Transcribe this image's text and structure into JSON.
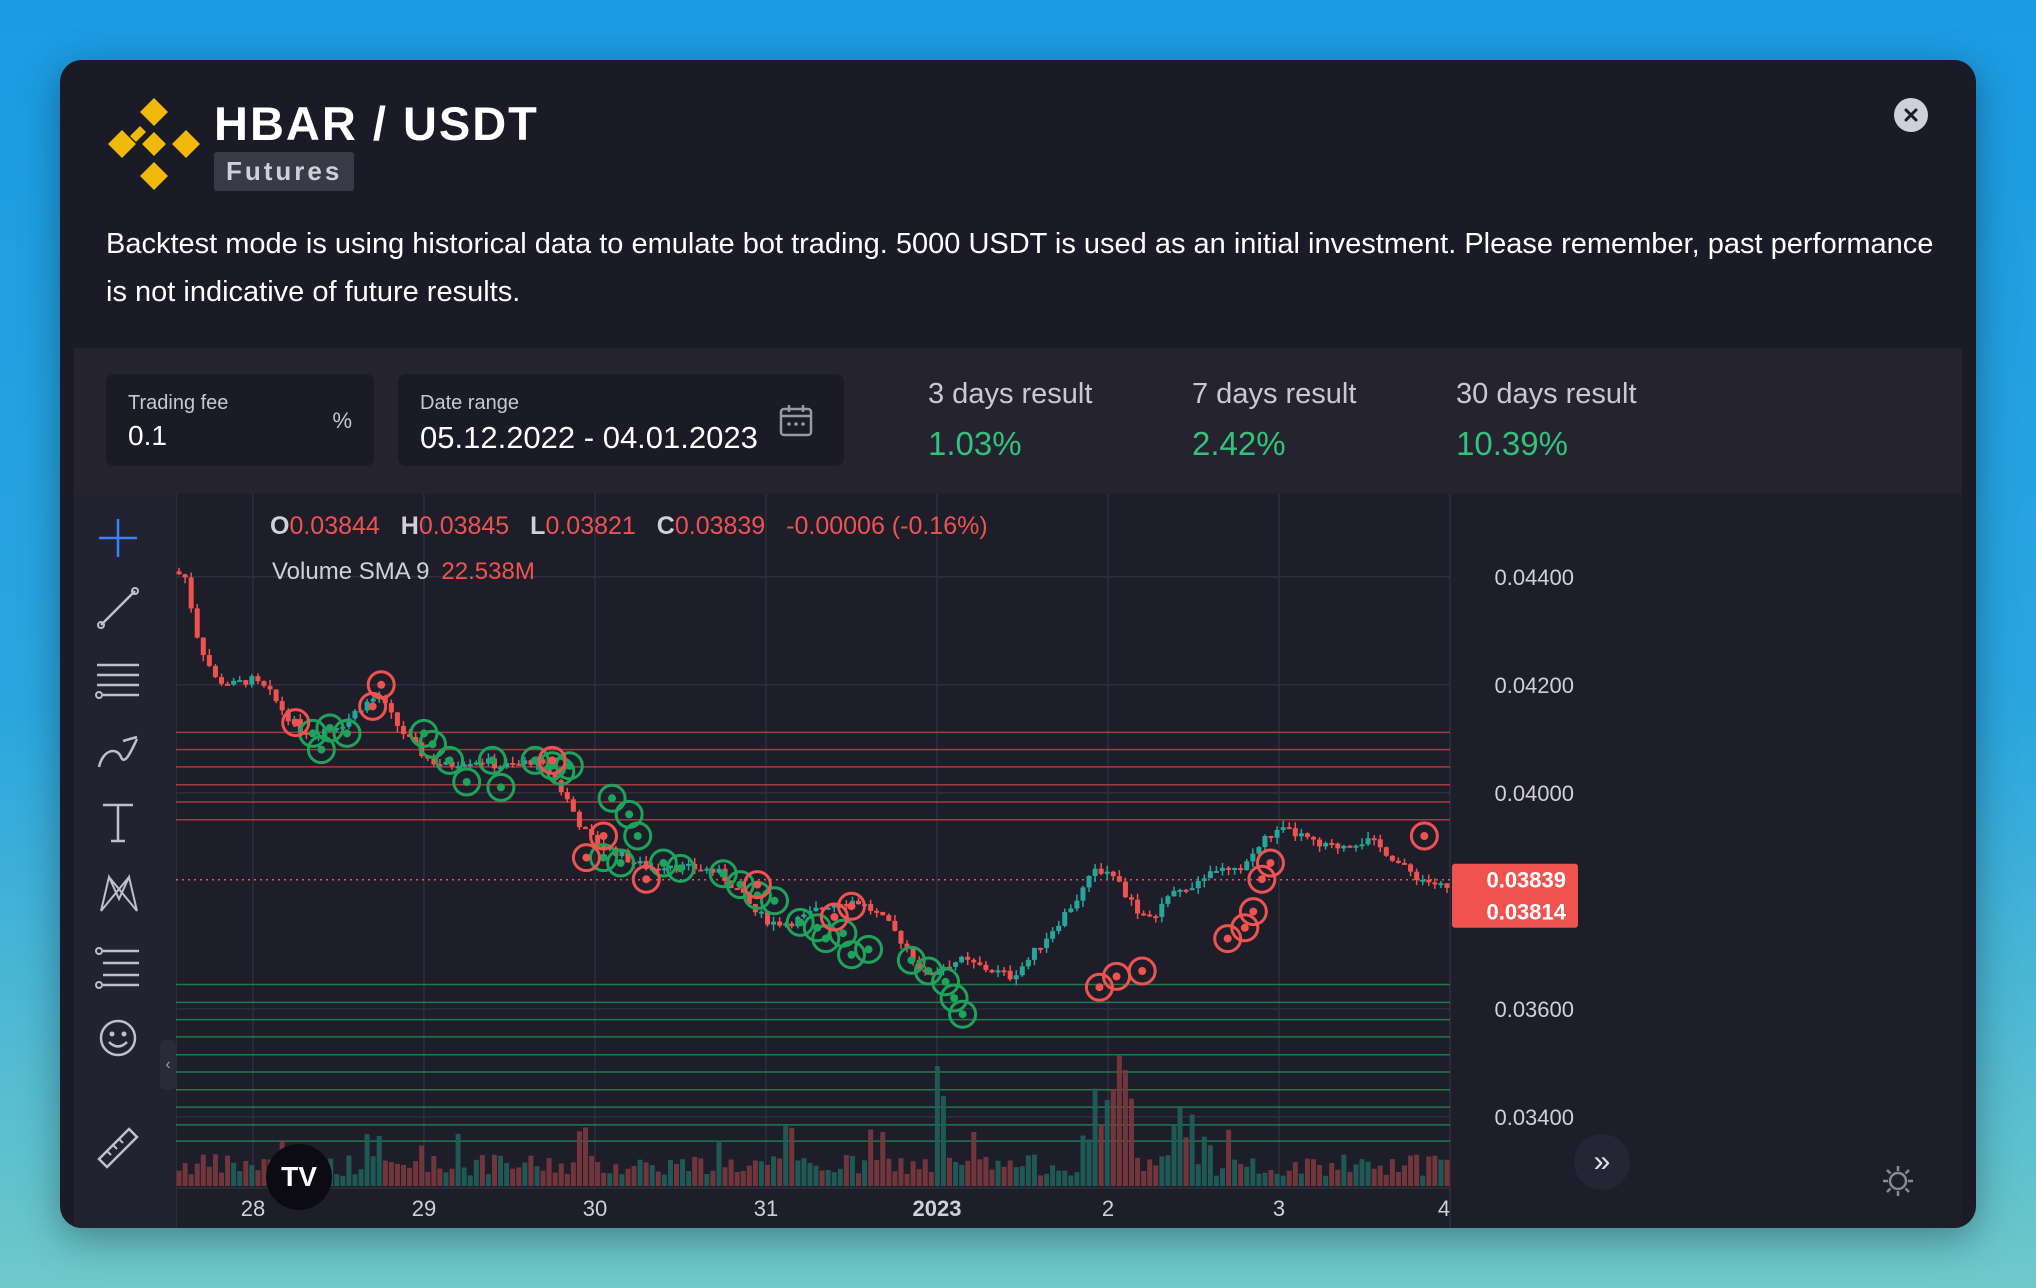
{
  "header": {
    "pair": "HBAR / USDT",
    "market": "Futures",
    "description": "Backtest mode is using historical data to emulate bot trading. 5000 USDT is used as an initial investment. Please remember, past performance is not indicative of future results."
  },
  "settings": {
    "trading_fee": {
      "label": "Trading fee",
      "value": "0.1",
      "unit": "%"
    },
    "date_range": {
      "label": "Date range",
      "value": "05.12.2022 - 04.01.2023"
    }
  },
  "results": [
    {
      "label": "3 days result",
      "value": "1.03%"
    },
    {
      "label": "7 days result",
      "value": "2.42%"
    },
    {
      "label": "30 days result",
      "value": "10.39%"
    }
  ],
  "colors": {
    "up": "#26a69a",
    "down": "#ef5350",
    "positive": "#34c17a",
    "brand": "#f0b90b"
  },
  "toolbar_icons": [
    "crosshair-icon",
    "trend-line-icon",
    "horizontal-lines-icon",
    "brush-icon",
    "text-icon",
    "pattern-icon",
    "fib-icon",
    "emoji-icon",
    "ruler-icon"
  ],
  "legend": {
    "o_key": "O",
    "o": "0.03844",
    "h_key": "H",
    "h": "0.03845",
    "l_key": "L",
    "l": "0.03821",
    "c_key": "C",
    "c": "0.03839",
    "change": "-0.00006 (-0.16%)",
    "volume_label": "Volume SMA 9",
    "volume_value": "22.538M"
  },
  "tv_logo_text": "TV",
  "chart_data": {
    "type": "candlestick",
    "x_ticks": [
      "28",
      "29",
      "30",
      "31",
      "2023",
      "2",
      "3",
      "4"
    ],
    "y_ticks": [
      "0.04400",
      "0.04200",
      "0.04000",
      "0.03600",
      "0.03400"
    ],
    "y_range": [
      0.0332,
      0.0452
    ],
    "price_labels": [
      "0.03839",
      "0.03814"
    ],
    "current_price": 0.03839,
    "close_path": [
      [
        27.55,
        0.0441
      ],
      [
        27.62,
        0.044
      ],
      [
        27.7,
        0.0428
      ],
      [
        27.8,
        0.0421
      ],
      [
        27.9,
        0.042
      ],
      [
        28.0,
        0.0421
      ],
      [
        28.1,
        0.0419
      ],
      [
        28.2,
        0.0415
      ],
      [
        28.28,
        0.0412
      ],
      [
        28.36,
        0.0411
      ],
      [
        28.45,
        0.0412
      ],
      [
        28.55,
        0.0413
      ],
      [
        28.65,
        0.0416
      ],
      [
        28.75,
        0.0418
      ],
      [
        28.85,
        0.0413
      ],
      [
        28.95,
        0.0409
      ],
      [
        29.05,
        0.0406
      ],
      [
        29.15,
        0.0405
      ],
      [
        29.25,
        0.0406
      ],
      [
        29.35,
        0.0406
      ],
      [
        29.45,
        0.0405
      ],
      [
        29.55,
        0.0405
      ],
      [
        29.65,
        0.0406
      ],
      [
        29.75,
        0.0404
      ],
      [
        29.85,
        0.0399
      ],
      [
        29.95,
        0.0393
      ],
      [
        30.05,
        0.039
      ],
      [
        30.15,
        0.0389
      ],
      [
        30.25,
        0.0387
      ],
      [
        30.35,
        0.0386
      ],
      [
        30.45,
        0.0387
      ],
      [
        30.55,
        0.0386
      ],
      [
        30.65,
        0.0386
      ],
      [
        30.75,
        0.0385
      ],
      [
        30.85,
        0.0382
      ],
      [
        30.95,
        0.0378
      ],
      [
        31.05,
        0.0376
      ],
      [
        31.15,
        0.0376
      ],
      [
        31.25,
        0.0377
      ],
      [
        31.35,
        0.0379
      ],
      [
        31.45,
        0.038
      ],
      [
        31.55,
        0.038
      ],
      [
        31.65,
        0.0378
      ],
      [
        31.75,
        0.0375
      ],
      [
        31.85,
        0.0371
      ],
      [
        31.95,
        0.0366
      ],
      [
        32.05,
        0.0368
      ],
      [
        32.15,
        0.0369
      ],
      [
        32.25,
        0.0368
      ],
      [
        32.35,
        0.0367
      ],
      [
        32.45,
        0.0366
      ],
      [
        32.55,
        0.0369
      ],
      [
        32.65,
        0.0373
      ],
      [
        32.75,
        0.0377
      ],
      [
        32.85,
        0.0381
      ],
      [
        32.95,
        0.0386
      ],
      [
        33.05,
        0.0385
      ],
      [
        33.15,
        0.038
      ],
      [
        33.25,
        0.0376
      ],
      [
        33.35,
        0.038
      ],
      [
        33.45,
        0.0382
      ],
      [
        33.55,
        0.0384
      ],
      [
        33.65,
        0.0386
      ],
      [
        33.75,
        0.0385
      ],
      [
        33.85,
        0.0388
      ],
      [
        33.95,
        0.0392
      ],
      [
        34.05,
        0.0393
      ],
      [
        34.15,
        0.0392
      ],
      [
        34.25,
        0.039
      ],
      [
        34.35,
        0.039
      ],
      [
        34.45,
        0.0391
      ],
      [
        34.55,
        0.0391
      ],
      [
        34.65,
        0.0389
      ],
      [
        34.75,
        0.0386
      ],
      [
        34.85,
        0.0384
      ],
      [
        34.95,
        0.0383
      ],
      [
        35.0,
        0.0382
      ]
    ],
    "sell_marks": [
      [
        28.25,
        0.0413
      ],
      [
        28.7,
        0.0416
      ],
      [
        28.75,
        0.042
      ],
      [
        29.75,
        0.0406
      ],
      [
        30.05,
        0.0392
      ],
      [
        29.95,
        0.0388
      ],
      [
        30.3,
        0.0384
      ],
      [
        30.95,
        0.0383
      ],
      [
        31.4,
        0.0377
      ],
      [
        31.5,
        0.0379
      ],
      [
        32.95,
        0.0364
      ],
      [
        33.05,
        0.0366
      ],
      [
        33.2,
        0.0367
      ],
      [
        33.7,
        0.0373
      ],
      [
        33.8,
        0.0375
      ],
      [
        33.85,
        0.0378
      ],
      [
        33.9,
        0.0384
      ],
      [
        33.95,
        0.0387
      ],
      [
        34.85,
        0.0392
      ]
    ],
    "buy_marks": [
      [
        28.35,
        0.0411
      ],
      [
        28.45,
        0.0412
      ],
      [
        28.55,
        0.0411
      ],
      [
        28.4,
        0.0408
      ],
      [
        29.0,
        0.0411
      ],
      [
        29.05,
        0.0409
      ],
      [
        29.15,
        0.0406
      ],
      [
        29.25,
        0.0402
      ],
      [
        29.4,
        0.0406
      ],
      [
        29.45,
        0.0401
      ],
      [
        29.65,
        0.0406
      ],
      [
        29.75,
        0.0405
      ],
      [
        29.8,
        0.0404
      ],
      [
        29.85,
        0.0405
      ],
      [
        30.1,
        0.0399
      ],
      [
        30.2,
        0.0396
      ],
      [
        30.25,
        0.0392
      ],
      [
        30.05,
        0.0388
      ],
      [
        30.15,
        0.0387
      ],
      [
        30.4,
        0.0387
      ],
      [
        30.5,
        0.0386
      ],
      [
        30.75,
        0.0385
      ],
      [
        30.85,
        0.0383
      ],
      [
        30.95,
        0.0381
      ],
      [
        31.05,
        0.038
      ],
      [
        31.2,
        0.0376
      ],
      [
        31.3,
        0.0375
      ],
      [
        31.35,
        0.0373
      ],
      [
        31.45,
        0.0374
      ],
      [
        31.5,
        0.037
      ],
      [
        31.6,
        0.0371
      ],
      [
        31.85,
        0.0369
      ],
      [
        31.95,
        0.0367
      ],
      [
        32.05,
        0.0365
      ],
      [
        32.1,
        0.0362
      ],
      [
        32.15,
        0.0359
      ]
    ],
    "sell_levels": [
      0.04112,
      0.0408,
      0.04048,
      0.04015,
      0.03983,
      0.0395
    ],
    "buy_levels": [
      0.03645,
      0.03612,
      0.0358,
      0.03548,
      0.03515,
      0.03483,
      0.0345,
      0.03418,
      0.03385,
      0.03355
    ]
  }
}
